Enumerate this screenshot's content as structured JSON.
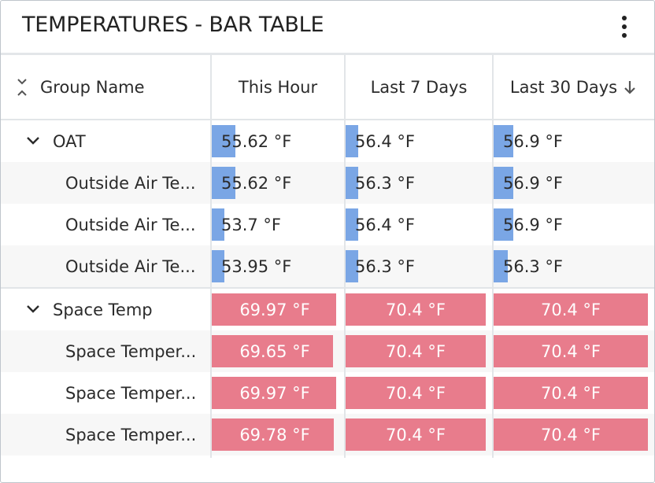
{
  "widget": {
    "title": "TEMPERATURES - BAR TABLE",
    "menu_icon": "kebab-menu-icon"
  },
  "columns": [
    {
      "label": "Group Name",
      "icon": "collapse-all-icon"
    },
    {
      "label": "This Hour"
    },
    {
      "label": "Last 7 Days"
    },
    {
      "label": "Last 30 Days",
      "sort": "descending",
      "sort_icon": "arrow-down-icon"
    }
  ],
  "colors": {
    "cold_bar": "#7aa6e5",
    "warm_bar": "#e87c8c"
  },
  "groups": [
    {
      "name": "OAT",
      "expanded": true,
      "bar_style": "blue",
      "summary": [
        {
          "value": "55.62 °F",
          "fraction": 0.19
        },
        {
          "value": "56.4 °F",
          "fraction": 0.09
        },
        {
          "value": "56.9 °F",
          "fraction": 0.13
        }
      ],
      "rows": [
        {
          "name": "Outside Air Te...",
          "cells": [
            {
              "value": "55.62 °F",
              "fraction": 0.19
            },
            {
              "value": "56.3 °F",
              "fraction": 0.09
            },
            {
              "value": "56.9 °F",
              "fraction": 0.13
            }
          ]
        },
        {
          "name": "Outside Air Te...",
          "cells": [
            {
              "value": "53.7 °F",
              "fraction": 0.1
            },
            {
              "value": "56.4 °F",
              "fraction": 0.09
            },
            {
              "value": "56.9 °F",
              "fraction": 0.13
            }
          ]
        },
        {
          "name": "Outside Air Te...",
          "cells": [
            {
              "value": "53.95 °F",
              "fraction": 0.1
            },
            {
              "value": "56.3 °F",
              "fraction": 0.09
            },
            {
              "value": "56.3 °F",
              "fraction": 0.09
            }
          ]
        }
      ]
    },
    {
      "name": "Space Temp",
      "expanded": true,
      "bar_style": "red",
      "summary": [
        {
          "value": "69.97 °F",
          "fraction": 0.99
        },
        {
          "value": "70.4 °F",
          "fraction": 1.0
        },
        {
          "value": "70.4 °F",
          "fraction": 1.0
        }
      ],
      "rows": [
        {
          "name": "Space Temper...",
          "cells": [
            {
              "value": "69.65 °F",
              "fraction": 0.96
            },
            {
              "value": "70.4 °F",
              "fraction": 1.0
            },
            {
              "value": "70.4 °F",
              "fraction": 1.0
            }
          ]
        },
        {
          "name": "Space Temper...",
          "cells": [
            {
              "value": "69.97 °F",
              "fraction": 0.99
            },
            {
              "value": "70.4 °F",
              "fraction": 1.0
            },
            {
              "value": "70.4 °F",
              "fraction": 1.0
            }
          ]
        },
        {
          "name": "Space Temper...",
          "cells": [
            {
              "value": "69.78 °F",
              "fraction": 0.97
            },
            {
              "value": "70.4 °F",
              "fraction": 1.0
            },
            {
              "value": "70.4 °F",
              "fraction": 1.0
            }
          ]
        }
      ]
    }
  ]
}
